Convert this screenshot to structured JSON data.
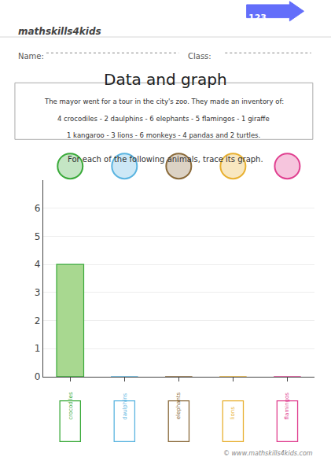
{
  "chart_data": {
    "type": "bar",
    "title": "Data and graph",
    "subtitle": "For each of the following animals, trace its graph.",
    "categories": [
      "crocodiles",
      "daulphins",
      "elephants",
      "lions",
      "flamingos"
    ],
    "values": [
      4,
      0,
      0,
      0,
      0
    ],
    "color": "#a8d890",
    "colors": [
      "#3aaa3a",
      "#5ab4e0",
      "#8a6a3a",
      "#e8b030",
      "#e04090"
    ],
    "ylim": [
      0,
      7
    ],
    "yticks": [
      0,
      1,
      2,
      3,
      4,
      5,
      6
    ],
    "grid": true,
    "tick_labels": "y",
    "annotations": [
      "123",
      "mathskills4kids",
      "Name:",
      "Class:",
      "The mayor went for a tour in the city's zoo. They made an inventory of:",
      "4 crocodiles - 2 daulphins - 6 elephants - 5 flamingos - 1 giraffe",
      "1 kangaroo - 3 lions - 6 monkeys - 4 pandas and 2 turtles.",
      "© www.mathskills4kids.com"
    ]
  }
}
